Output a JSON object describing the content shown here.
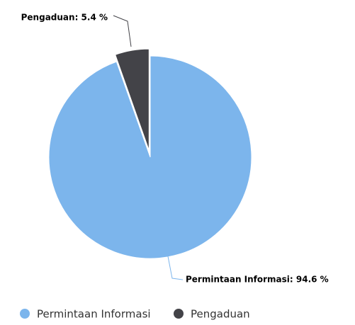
{
  "chart_data": {
    "type": "pie",
    "categories": [
      "Permintaan Informasi",
      "Pengaduan"
    ],
    "values": [
      94.6,
      5.4
    ],
    "value_labels": [
      "Permintaan Informasi: 94.6 %",
      "Pengaduan: 5.4 %"
    ],
    "colors": [
      "#7cb5ec",
      "#434348"
    ],
    "sliced": [
      false,
      true
    ],
    "legend": "bottom"
  }
}
